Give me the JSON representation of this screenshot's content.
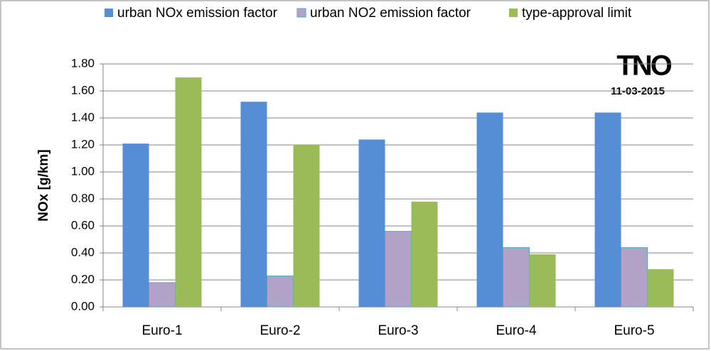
{
  "chart_data": {
    "type": "bar",
    "categories": [
      "Euro-1",
      "Euro-2",
      "Euro-3",
      "Euro-4",
      "Euro-5"
    ],
    "series": [
      {
        "name": "urban NOx emission factor",
        "color": "#558ed5",
        "values": [
          1.21,
          1.52,
          1.24,
          1.44,
          1.44
        ]
      },
      {
        "name": "urban NO2 emission factor",
        "color": "#b3a2c7",
        "values": [
          0.18,
          0.23,
          0.56,
          0.44,
          0.44
        ]
      },
      {
        "name": "type-approval limit",
        "color": "#9bbb59",
        "values": [
          1.7,
          1.2,
          0.78,
          0.39,
          0.28
        ]
      }
    ],
    "y_label": "NOx [g/km]",
    "annotations": [
      "TNO",
      "11-03-2015"
    ],
    "ylim": [
      0,
      1.8
    ],
    "yticks": [
      {
        "value": 0,
        "label": "0.00"
      },
      {
        "value": 0.2,
        "label": "0.20"
      },
      {
        "value": 0.4,
        "label": "0.40"
      },
      {
        "value": 0.6,
        "label": "0.60"
      },
      {
        "value": 0.8,
        "label": "0.80"
      },
      {
        "value": 1.0,
        "label": "1.00"
      },
      {
        "value": 1.2,
        "label": "1.20"
      },
      {
        "value": 1.4,
        "label": "1.40"
      },
      {
        "value": 1.6,
        "label": "1.60"
      },
      {
        "value": 1.8,
        "label": "1.80"
      }
    ],
    "grid": true,
    "legend": "top"
  }
}
